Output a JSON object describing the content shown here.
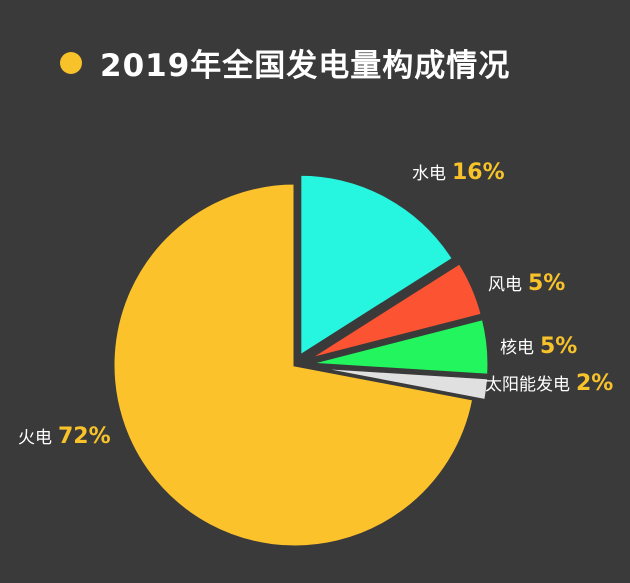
{
  "header": {
    "title": "2019年全国发电量构成情况"
  },
  "colors": {
    "accent": "#f8c22b",
    "background": "#3a3a3a"
  },
  "chart_data": {
    "type": "pie",
    "title": "2019年全国发电量构成情况",
    "slices": [
      {
        "name": "水电",
        "value": 16,
        "label": "16%",
        "color": "#26f5e0"
      },
      {
        "name": "风电",
        "value": 5,
        "label": "5%",
        "color": "#fc5333"
      },
      {
        "name": "核电",
        "value": 5,
        "label": "5%",
        "color": "#22f55d"
      },
      {
        "name": "太阳能发电",
        "value": 2,
        "label": "2%",
        "color": "#e0e0e0"
      },
      {
        "name": "火电",
        "value": 72,
        "label": "72%",
        "color": "#fcc22b"
      }
    ]
  }
}
